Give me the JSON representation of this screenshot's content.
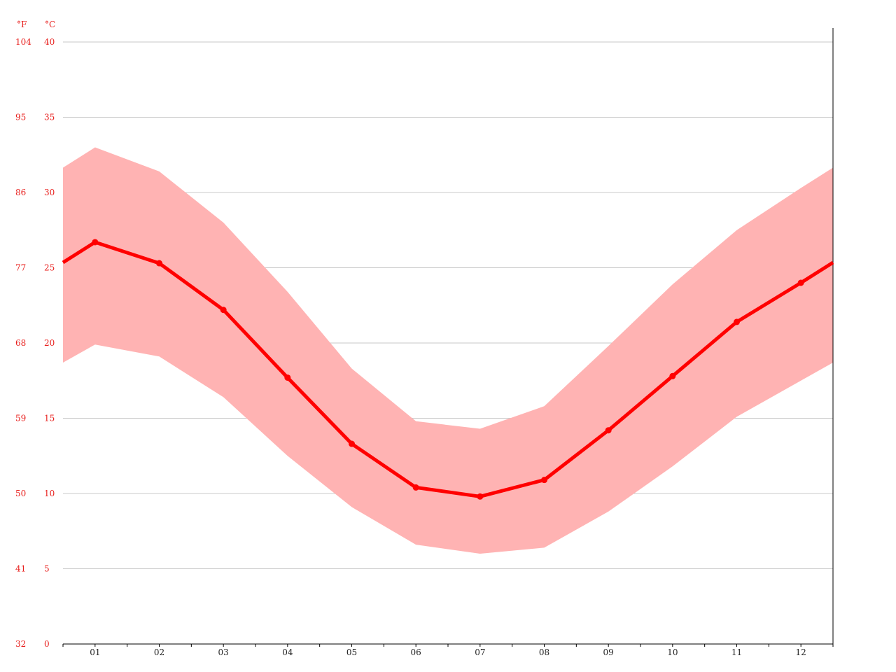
{
  "chart_data": {
    "type": "area",
    "categories": [
      "01",
      "02",
      "03",
      "04",
      "05",
      "06",
      "07",
      "08",
      "09",
      "10",
      "11",
      "12"
    ],
    "unit_fahrenheit": "°F",
    "unit_celsius": "°C",
    "yticks_celsius": [
      "0",
      "5",
      "10",
      "15",
      "20",
      "25",
      "30",
      "35",
      "40"
    ],
    "yticks_fahrenheit": [
      "32",
      "41",
      "50",
      "59",
      "68",
      "77",
      "86",
      "95",
      "104"
    ],
    "ylim": [
      0,
      40
    ],
    "grid": true,
    "series": [
      {
        "name": "",
        "kind": "line",
        "values": [
          26.7,
          25.3,
          22.2,
          17.7,
          13.3,
          10.4,
          9.8,
          10.9,
          14.2,
          17.8,
          21.4,
          24.0
        ]
      },
      {
        "name": "",
        "kind": "band-max",
        "values": [
          33.0,
          31.4,
          28.0,
          23.4,
          18.3,
          14.8,
          14.3,
          15.8,
          19.8,
          23.9,
          27.5,
          30.3
        ]
      },
      {
        "name": "",
        "kind": "band-min",
        "values": [
          19.9,
          19.1,
          16.4,
          12.5,
          9.1,
          6.6,
          6.0,
          6.4,
          8.8,
          11.8,
          15.1,
          17.5
        ]
      }
    ],
    "colors": {
      "line": "#ff0000",
      "band": "#ffb3b3",
      "grid": "#c8c8c8",
      "tick_label": "#e8201e",
      "axis": "#000000"
    }
  }
}
